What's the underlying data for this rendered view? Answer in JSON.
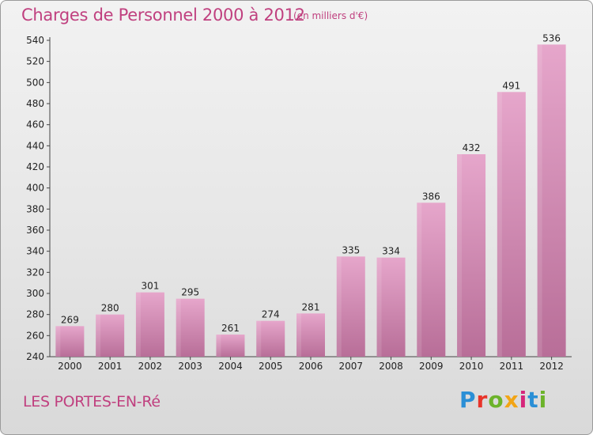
{
  "title": "Charges de Personnel 2000 à 2012",
  "subtitle": "(en milliers d'€)",
  "commune": "LES PORTES-EN-Ré",
  "logo": {
    "letters": [
      "P",
      "r",
      "o",
      "x",
      "i",
      "t",
      "i"
    ],
    "colors": [
      "#2a8fd6",
      "#e8342a",
      "#6cb32a",
      "#f2a516",
      "#d6257a",
      "#2a8fd6",
      "#6cb32a"
    ]
  },
  "colors": {
    "bar": "#cc7aa6",
    "bar_light": "#e6a6c8",
    "accent": "#c0407f"
  },
  "chart_data": {
    "type": "bar",
    "categories": [
      "2000",
      "2001",
      "2002",
      "2003",
      "2004",
      "2005",
      "2006",
      "2007",
      "2008",
      "2009",
      "2010",
      "2011",
      "2012"
    ],
    "values": [
      269,
      280,
      301,
      295,
      261,
      274,
      281,
      335,
      334,
      386,
      432,
      491,
      536
    ],
    "ylim": [
      240,
      540
    ],
    "yticks": [
      240,
      260,
      280,
      300,
      320,
      340,
      360,
      380,
      400,
      420,
      440,
      460,
      480,
      500,
      520,
      540
    ],
    "grid": false,
    "title": "Charges de Personnel 2000 à 2012",
    "xlabel": "",
    "ylabel": ""
  }
}
